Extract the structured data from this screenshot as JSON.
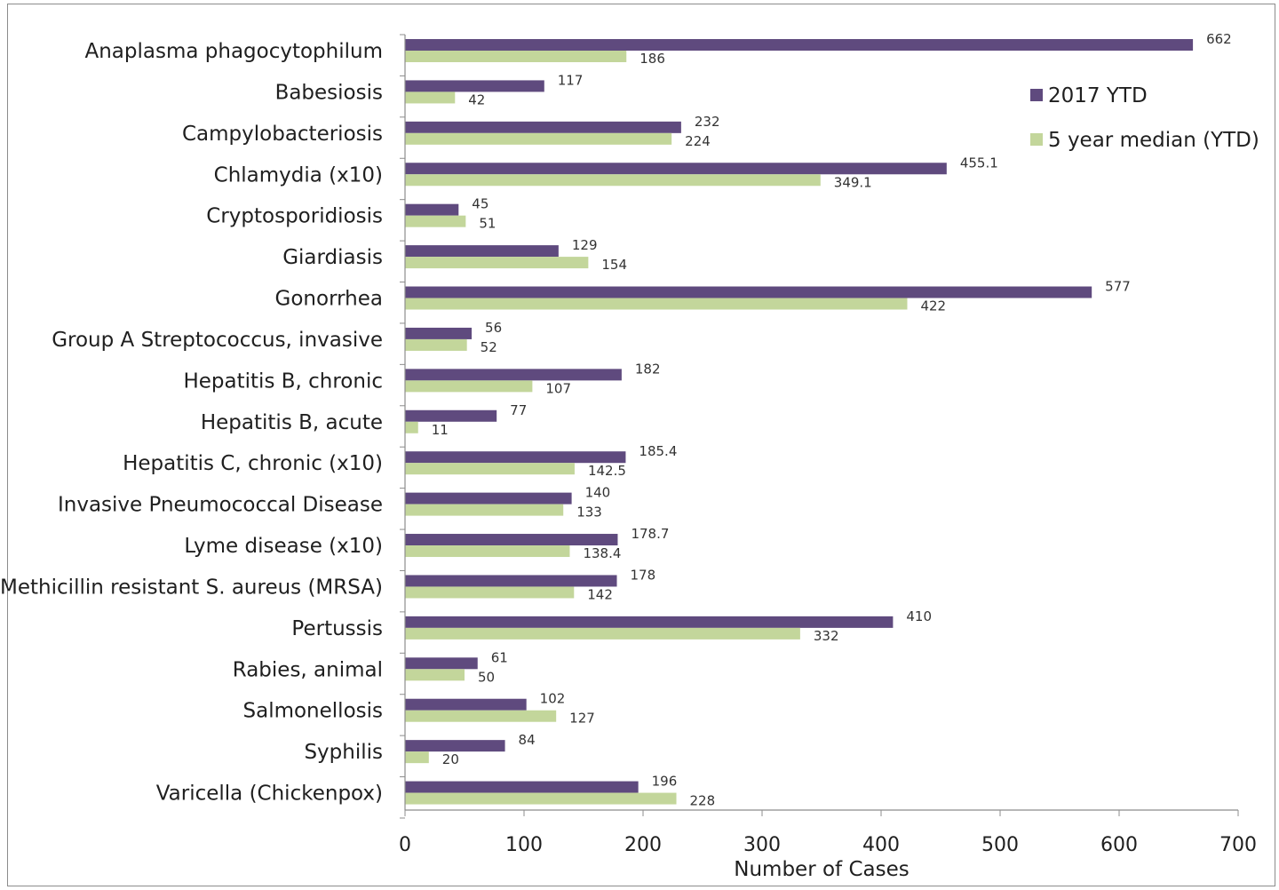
{
  "chart_data": {
    "type": "bar",
    "orientation": "horizontal",
    "categories": [
      "Anaplasma phagocytophilum",
      "Babesiosis",
      "Campylobacteriosis",
      "Chlamydia (x10)",
      "Cryptosporidiosis",
      "Giardiasis",
      "Gonorrhea",
      "Group A Streptococcus, invasive",
      "Hepatitis B, chronic",
      "Hepatitis B, acute",
      "Hepatitis C, chronic (x10)",
      "Invasive Pneumococcal Disease",
      "Lyme disease (x10)",
      "Methicillin resistant S. aureus (MRSA)",
      "Pertussis",
      "Rabies, animal",
      "Salmonellosis",
      "Syphilis",
      "Varicella (Chickenpox)"
    ],
    "series": [
      {
        "name": "2017 YTD",
        "color": "#5f4a7e",
        "values": [
          662,
          117,
          232,
          455.1,
          45,
          129,
          577,
          56,
          182,
          77,
          185.4,
          140,
          178.7,
          178,
          410,
          61,
          102,
          84,
          196
        ]
      },
      {
        "name": "5 year median (YTD)",
        "color": "#c3d69b",
        "values": [
          186,
          42,
          224,
          349.1,
          51,
          154,
          422,
          52,
          107,
          11,
          142.5,
          133,
          138.4,
          142,
          332,
          50,
          127,
          20,
          228
        ]
      }
    ],
    "xlabel": "Number of Cases",
    "xlim": [
      0,
      700
    ],
    "xticks": [
      0,
      100,
      200,
      300,
      400,
      500,
      600,
      700
    ],
    "grid": false,
    "legend_position": "top-right"
  }
}
